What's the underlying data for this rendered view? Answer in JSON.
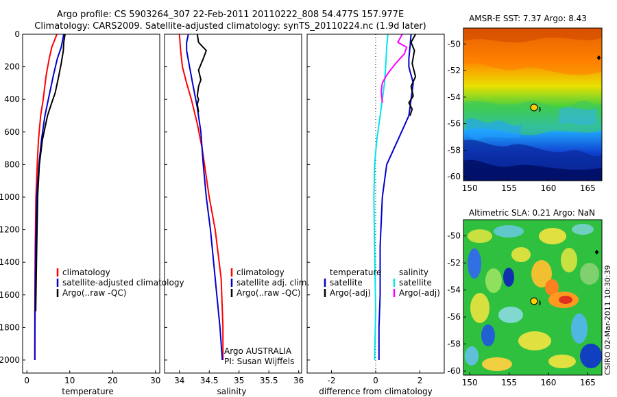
{
  "header": {
    "line1": "Argo profile: CS 5903264_307 22-Feb-2011 20110222_808 54.477S 157.977E",
    "line2": "Climatology: CARS2009. Satellite-adjusted climatology: synTS_20110224.nc (1.9d later)"
  },
  "side_credit": "CSIRO 02-Mar-2011 10:30:39",
  "colors": {
    "climatology": "#ff0000",
    "satellite": "#0000cc",
    "argo": "#000000",
    "satellite_salinity_diff": "#00e5ee",
    "argo_salinity_diff": "#ff00ff"
  },
  "chart_data": [
    {
      "type": "line",
      "xlabel": "temperature",
      "ylabel": "",
      "xlim": [
        -1,
        31
      ],
      "ylim": [
        2080,
        0
      ],
      "xticks": [
        0,
        10,
        20,
        30
      ],
      "yticks": [
        0,
        200,
        400,
        600,
        800,
        1000,
        1200,
        1400,
        1600,
        1800,
        2000
      ],
      "legend": [
        "climatology",
        "satellite-adjusted climatology",
        "Argo(..raw -QC)"
      ],
      "series": [
        {
          "name": "climatology",
          "color": "#ff0000",
          "x": [
            7.0,
            5.8,
            5.2,
            4.5,
            3.8,
            3.2,
            2.7,
            2.4,
            2.1,
            1.95,
            1.85,
            1.85
          ],
          "y": [
            0,
            80,
            150,
            250,
            400,
            500,
            650,
            800,
            1000,
            1300,
            1700,
            2000
          ]
        },
        {
          "name": "satellite-adjusted climatology",
          "color": "#0000cc",
          "x": [
            8.6,
            8.0,
            7.1,
            6.2,
            5.0,
            4.2,
            3.4,
            2.8,
            2.3,
            2.05,
            1.9,
            1.85
          ],
          "y": [
            0,
            80,
            150,
            250,
            400,
            500,
            650,
            800,
            1000,
            1300,
            1700,
            2000
          ]
        },
        {
          "name": "Argo(..raw -QC)",
          "color": "#000000",
          "x": [
            8.9,
            8.6,
            8.5,
            8.0,
            7.4,
            6.6,
            5.8,
            4.8,
            3.6,
            2.9,
            2.5,
            2.3,
            2.05
          ],
          "y": [
            0,
            50,
            100,
            180,
            260,
            360,
            420,
            500,
            650,
            800,
            1000,
            1300,
            1700
          ]
        }
      ]
    },
    {
      "type": "line",
      "xlabel": "salinity",
      "ylabel": "",
      "xlim": [
        33.75,
        36.05
      ],
      "ylim": [
        2080,
        0
      ],
      "xticks": [
        34,
        34.5,
        35,
        35.5,
        36
      ],
      "legend": [
        "climatology",
        "satellite adj. clim.",
        "Argo(..raw -QC)"
      ],
      "annotation": [
        "Argo AUSTRALIA",
        "PI: Susan Wijffels"
      ],
      "series": [
        {
          "name": "climatology",
          "color": "#ff0000",
          "x": [
            34.0,
            34.02,
            34.05,
            34.12,
            34.2,
            34.3,
            34.38,
            34.42,
            34.5,
            34.6,
            34.7,
            34.73,
            34.73
          ],
          "y": [
            0,
            100,
            200,
            300,
            400,
            550,
            700,
            800,
            1000,
            1200,
            1500,
            1800,
            2000
          ]
        },
        {
          "name": "satellite adj. clim.",
          "color": "#0000cc",
          "x": [
            34.15,
            34.12,
            34.12,
            34.17,
            34.22,
            34.3,
            34.36,
            34.4,
            34.45,
            34.52,
            34.6,
            34.68,
            34.72
          ],
          "y": [
            0,
            50,
            100,
            200,
            300,
            450,
            600,
            800,
            1000,
            1200,
            1500,
            1800,
            2000
          ]
        },
        {
          "name": "Argo(..raw -QC)",
          "color": "#000000",
          "x": [
            34.3,
            34.32,
            34.45,
            34.4,
            34.32,
            34.36,
            34.32,
            34.3,
            34.32,
            34.3,
            34.32
          ],
          "y": [
            0,
            50,
            100,
            150,
            220,
            280,
            320,
            380,
            400,
            430,
            480
          ]
        }
      ]
    },
    {
      "type": "line",
      "xlabel": "difference from climatology",
      "ylabel": "",
      "xlim": [
        -3.1,
        3.1
      ],
      "ylim": [
        2080,
        0
      ],
      "xticks": [
        -2,
        0,
        2
      ],
      "legend_groups": [
        {
          "title": "temperature",
          "items": [
            "satellite",
            "Argo(-adj)"
          ]
        },
        {
          "title": "salinity",
          "items": [
            "satellite",
            "Argo(-adj)"
          ]
        }
      ],
      "series": [
        {
          "name": "satellite",
          "group": "temperature",
          "color": "#0000cc",
          "x": [
            1.6,
            1.55,
            1.5,
            1.5,
            1.7,
            1.6,
            1.5,
            1.0,
            0.5,
            0.3,
            0.2,
            0.2,
            0.15,
            0.15
          ],
          "y": [
            0,
            80,
            150,
            200,
            300,
            400,
            500,
            650,
            800,
            1000,
            1300,
            1600,
            1800,
            2000
          ]
        },
        {
          "name": "Argo(-adj)",
          "group": "temperature",
          "color": "#000000",
          "x": [
            1.8,
            1.6,
            1.75,
            1.65,
            1.8,
            1.6,
            1.7,
            1.5,
            1.65,
            1.55
          ],
          "y": [
            0,
            50,
            100,
            180,
            260,
            320,
            380,
            420,
            460,
            500
          ]
        },
        {
          "name": "satellite",
          "group": "salinity",
          "color": "#00e5ee",
          "x": [
            0.55,
            0.5,
            0.45,
            0.4,
            0.3,
            0.2,
            0.05,
            -0.05,
            -0.08,
            -0.05,
            0.0,
            -0.05
          ],
          "y": [
            0,
            80,
            200,
            300,
            400,
            500,
            650,
            800,
            1000,
            1300,
            1700,
            2000
          ]
        },
        {
          "name": "Argo(-adj)",
          "group": "salinity",
          "color": "#ff00ff",
          "x": [
            1.2,
            1.0,
            1.4,
            1.3,
            0.9,
            0.5,
            0.3,
            0.25,
            0.3
          ],
          "y": [
            0,
            50,
            80,
            120,
            180,
            250,
            300,
            350,
            420
          ]
        }
      ]
    }
  ],
  "maps": [
    {
      "title": "AMSR-E SST: 7.37 Argo: 8.43",
      "xlim": [
        149.2,
        166.8
      ],
      "ylim": [
        -60.3,
        -48.8
      ],
      "xticks": [
        150,
        155,
        160,
        165
      ],
      "yticks": [
        -50,
        -52,
        -54,
        -56,
        -58,
        -60
      ],
      "float_position": [
        157.977,
        -54.477
      ]
    },
    {
      "title": "Altimetric SLA: 0.21 Argo: NaN",
      "xlim": [
        149.2,
        166.8
      ],
      "ylim": [
        -60.3,
        -48.8
      ],
      "xticks": [
        150,
        155,
        160,
        165
      ],
      "yticks": [
        -50,
        -52,
        -54,
        -56,
        -58,
        -60
      ],
      "float_position": [
        157.977,
        -54.477
      ]
    }
  ]
}
